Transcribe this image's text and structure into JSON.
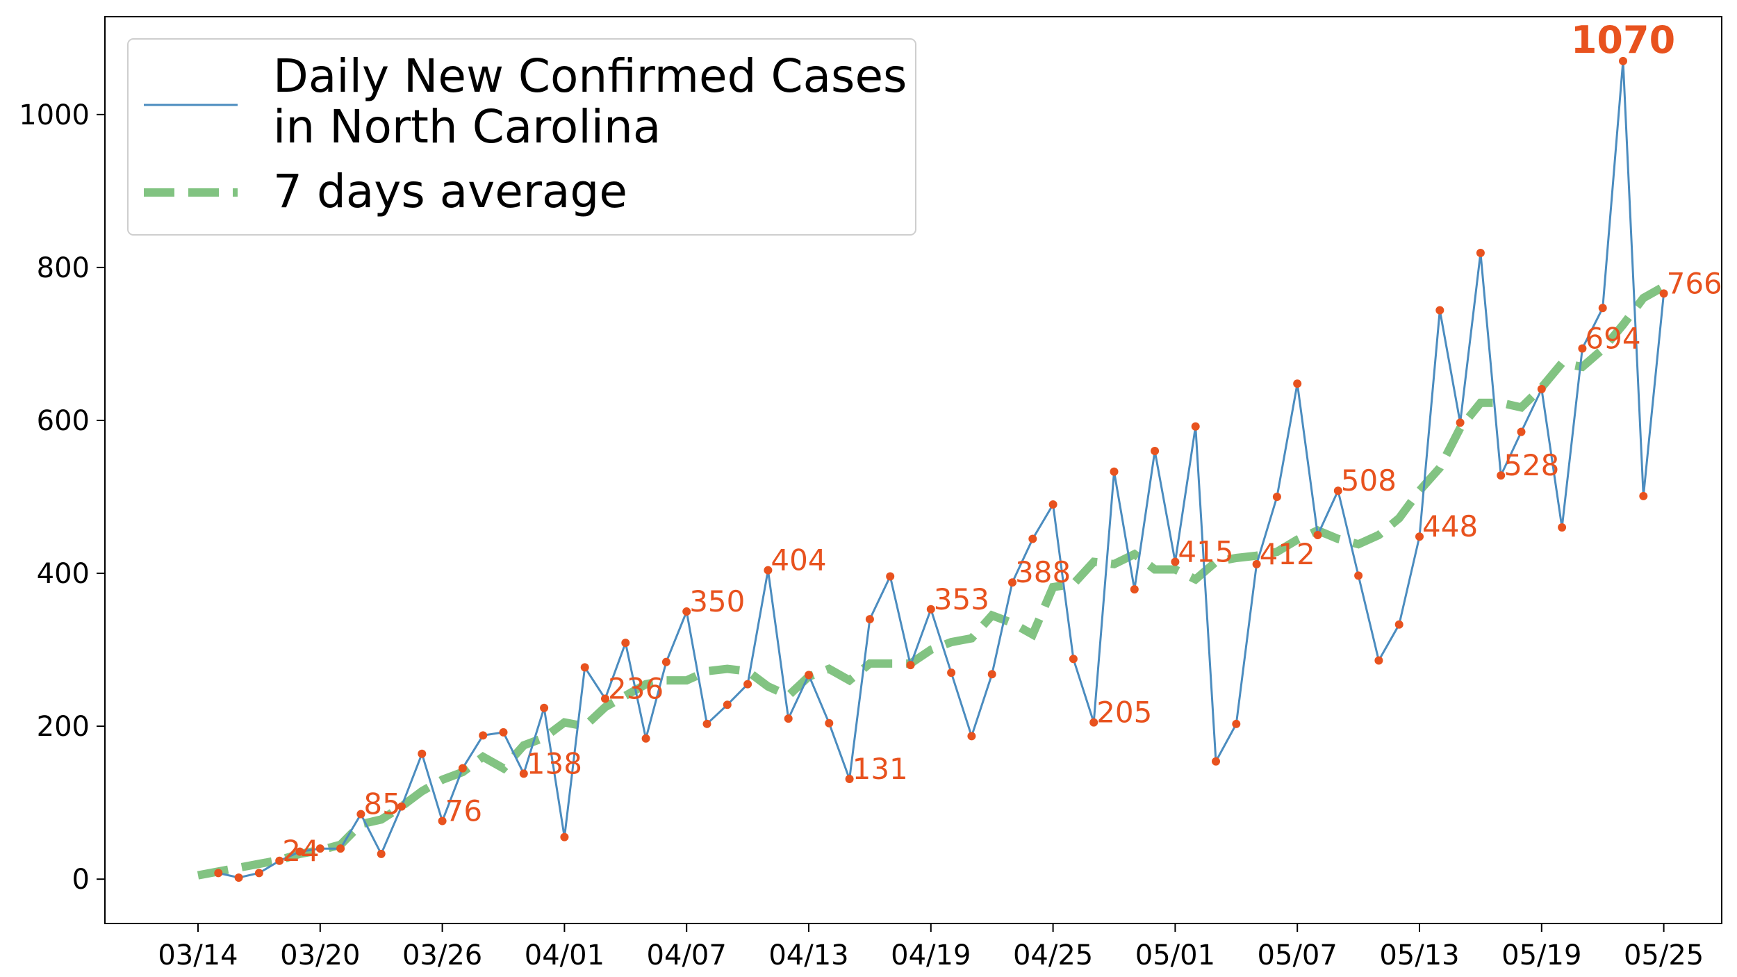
{
  "chart_data": {
    "type": "line",
    "x": [
      "03/14",
      "03/15",
      "03/16",
      "03/17",
      "03/18",
      "03/19",
      "03/20",
      "03/21",
      "03/22",
      "03/23",
      "03/24",
      "03/25",
      "03/26",
      "03/27",
      "03/28",
      "03/29",
      "03/30",
      "03/31",
      "04/01",
      "04/02",
      "04/03",
      "04/04",
      "04/05",
      "04/06",
      "04/07",
      "04/08",
      "04/09",
      "04/10",
      "04/11",
      "04/12",
      "04/13",
      "04/14",
      "04/15",
      "04/16",
      "04/17",
      "04/18",
      "04/19",
      "04/20",
      "04/21",
      "04/22",
      "04/23",
      "04/24",
      "04/25",
      "04/26",
      "04/27",
      "04/28",
      "04/29",
      "04/30",
      "05/01",
      "05/02",
      "05/03",
      "05/04",
      "05/05",
      "05/06",
      "05/07",
      "05/08",
      "05/09",
      "05/10",
      "05/11",
      "05/12",
      "05/13",
      "05/14",
      "05/15",
      "05/16",
      "05/17",
      "05/18",
      "05/19",
      "05/20",
      "05/21",
      "05/22",
      "05/23",
      "05/24",
      "05/25"
    ],
    "x_ticks": [
      "03/14",
      "03/20",
      "03/26",
      "04/01",
      "04/07",
      "04/13",
      "04/19",
      "04/25",
      "05/01",
      "05/07",
      "05/13",
      "05/19",
      "05/25"
    ],
    "y_ticks": [
      0,
      200,
      400,
      600,
      800,
      1000
    ],
    "ylim": [
      -58,
      1128
    ],
    "series": [
      {
        "name": "Daily New Confirmed Cases\n in North Carolina",
        "color": "#4b8cbf",
        "style": "solid",
        "markers": true,
        "marker_color": "#e8521e",
        "values": [
          null,
          8,
          2,
          8,
          24,
          36,
          40,
          40,
          85,
          33,
          95,
          164,
          76,
          145,
          188,
          192,
          138,
          224,
          55,
          277,
          236,
          309,
          184,
          284,
          350,
          203,
          228,
          255,
          404,
          210,
          267,
          204,
          131,
          340,
          396,
          280,
          353,
          270,
          187,
          268,
          388,
          445,
          490,
          288,
          205,
          533,
          379,
          560,
          415,
          592,
          154,
          203,
          412,
          500,
          648,
          450,
          508,
          397,
          286,
          333,
          448,
          744,
          597,
          819,
          528,
          585,
          641,
          460,
          694,
          747,
          1070,
          501,
          766
        ]
      },
      {
        "name": "7 days average",
        "color": "#6cb96c",
        "style": "dashed",
        "markers": false,
        "values": [
          5,
          10,
          15,
          20,
          25,
          33,
          38,
          45,
          72,
          78,
          95,
          115,
          130,
          140,
          160,
          145,
          175,
          185,
          205,
          200,
          225,
          240,
          255,
          260,
          260,
          272,
          275,
          272,
          252,
          240,
          265,
          275,
          260,
          282,
          282,
          282,
          300,
          310,
          315,
          345,
          335,
          320,
          382,
          386,
          415,
          412,
          425,
          405,
          405,
          392,
          415,
          420,
          423,
          428,
          444,
          456,
          445,
          438,
          450,
          472,
          508,
          538,
          590,
          623,
          623,
          617,
          643,
          675,
          670,
          693,
          725,
          760,
          775
        ]
      }
    ],
    "annotations": [
      {
        "x": "03/18",
        "y": 24,
        "text": "24",
        "bold": false
      },
      {
        "x": "03/22",
        "y": 85,
        "text": "85",
        "bold": false
      },
      {
        "x": "03/26",
        "y": 76,
        "text": "76",
        "bold": false
      },
      {
        "x": "03/30",
        "y": 138,
        "text": "138",
        "bold": false
      },
      {
        "x": "04/03",
        "y": 236,
        "text": "236",
        "bold": false
      },
      {
        "x": "04/07",
        "y": 350,
        "text": "350",
        "bold": false
      },
      {
        "x": "04/11",
        "y": 404,
        "text": "404",
        "bold": false
      },
      {
        "x": "04/15",
        "y": 131,
        "text": "131",
        "bold": false
      },
      {
        "x": "04/19",
        "y": 353,
        "text": "353",
        "bold": false
      },
      {
        "x": "04/23",
        "y": 388,
        "text": "388",
        "bold": false
      },
      {
        "x": "04/27",
        "y": 205,
        "text": "205",
        "bold": false
      },
      {
        "x": "05/01",
        "y": 415,
        "text": "415",
        "bold": false
      },
      {
        "x": "05/05",
        "y": 412,
        "text": "412",
        "bold": false
      },
      {
        "x": "05/09",
        "y": 508,
        "text": "508",
        "bold": false
      },
      {
        "x": "05/13",
        "y": 448,
        "text": "448",
        "bold": false
      },
      {
        "x": "05/17",
        "y": 528,
        "text": "528",
        "bold": false
      },
      {
        "x": "05/21",
        "y": 694,
        "text": "694",
        "bold": false
      },
      {
        "x": "05/25",
        "y": 766,
        "text": "766",
        "bold": false
      },
      {
        "x": "05/23",
        "y": 1070,
        "text": "1070",
        "bold": true
      }
    ],
    "annotation_color": "#e8521e",
    "legend": {
      "position": "top-left",
      "entries": [
        {
          "lines": [
            "Daily New Confirmed Cases",
            " in North Carolina"
          ],
          "series": 0
        },
        {
          "lines": [
            "7 days average"
          ],
          "series": 1
        }
      ]
    },
    "grid": false,
    "title": "",
    "xlabel": "",
    "ylabel": ""
  }
}
